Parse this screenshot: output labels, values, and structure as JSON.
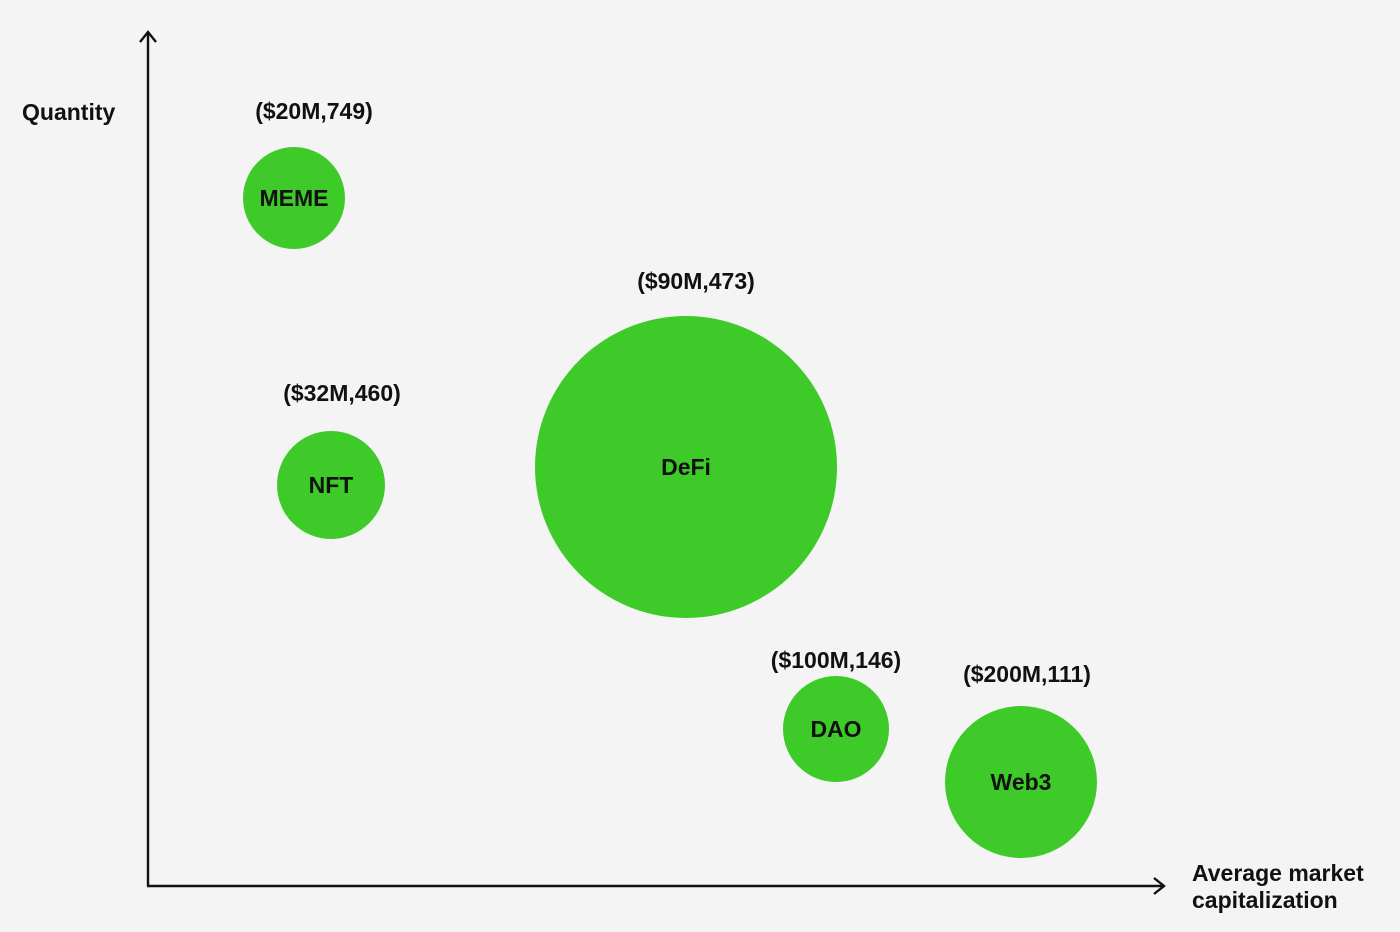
{
  "chart_data": {
    "type": "scatter",
    "subtype": "bubble",
    "title": "",
    "xlabel_lines": [
      "Average market",
      "capitalization"
    ],
    "ylabel": "Quantity",
    "grid": false,
    "legend": "none",
    "bubble_color": "#3ecb2a",
    "axis_color": "#111111",
    "points": [
      {
        "name": "MEME",
        "label": "($20M,749)",
        "x": 20,
        "y": 749
      },
      {
        "name": "NFT",
        "label": "($32M,460)",
        "x": 32,
        "y": 460
      },
      {
        "name": "DeFi",
        "label": "($90M,473)",
        "x": 90,
        "y": 473
      },
      {
        "name": "DAO",
        "label": "($100M,146)",
        "x": 100,
        "y": 146
      },
      {
        "name": "Web3",
        "label": "($200M,111)",
        "x": 200,
        "y": 111
      }
    ]
  }
}
